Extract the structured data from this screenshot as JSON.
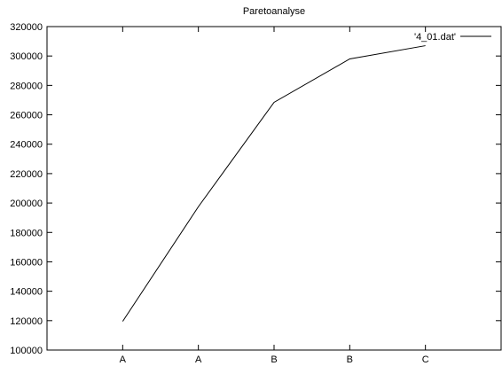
{
  "chart_data": {
    "type": "line",
    "title": "Paretoanalyse",
    "xlabel": "",
    "ylabel": "",
    "categories": [
      "A",
      "A",
      "B",
      "B",
      "C"
    ],
    "x": [
      1,
      2,
      3,
      4,
      5
    ],
    "xlim": [
      0,
      6
    ],
    "ylim": [
      100000,
      320000
    ],
    "yticks": [
      100000,
      120000,
      140000,
      160000,
      180000,
      200000,
      220000,
      240000,
      260000,
      280000,
      300000,
      320000
    ],
    "ytick_labels": [
      "100000",
      "120000",
      "140000",
      "160000",
      "180000",
      "200000",
      "220000",
      "240000",
      "260000",
      "280000",
      "300000",
      "320000"
    ],
    "grid": false,
    "legend_position": "top-right",
    "series": [
      {
        "name": "'4_01.dat'",
        "values": [
          119500,
          197500,
          268500,
          298000,
          307000
        ],
        "color": "#000000"
      }
    ]
  }
}
